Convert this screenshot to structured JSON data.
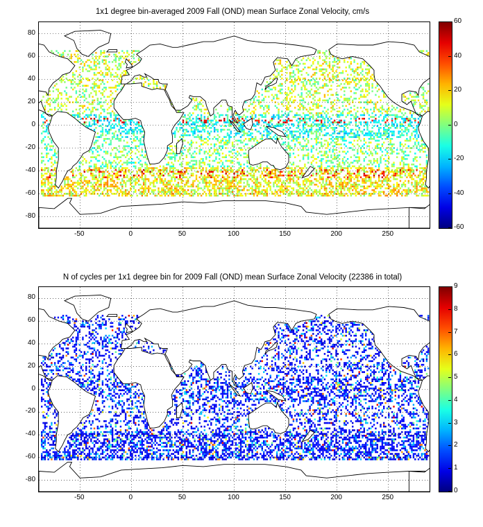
{
  "panels": [
    {
      "title": "1x1 degree bin-averaged 2009 Fall (OND) mean Surface Zonal Velocity, cm/s",
      "x_ticks": [
        "-50",
        "0",
        "50",
        "100",
        "150",
        "200",
        "250"
      ],
      "y_ticks": [
        "80",
        "60",
        "40",
        "20",
        "0",
        "-20",
        "-40",
        "-60",
        "-80"
      ],
      "colorbar_ticks": [
        "60",
        "40",
        "20",
        "0",
        "-20",
        "-40",
        "-60"
      ],
      "colormap": "jet",
      "clim": [
        -60,
        60
      ]
    },
    {
      "title": "N of cycles per 1x1 degree bin for 2009 Fall (OND) mean Surface Zonal Velocity (22386 in total)",
      "x_ticks": [
        "-50",
        "0",
        "50",
        "100",
        "150",
        "200",
        "250"
      ],
      "y_ticks": [
        "80",
        "60",
        "40",
        "20",
        "0",
        "-20",
        "-40",
        "-60",
        "-80"
      ],
      "colorbar_ticks": [
        "9",
        "8",
        "7",
        "6",
        "5",
        "4",
        "3",
        "2",
        "1",
        "0"
      ],
      "colormap": "jet",
      "clim": [
        0,
        9
      ]
    }
  ],
  "map": {
    "xlim": [
      -90,
      290
    ],
    "ylim": [
      -90,
      90
    ],
    "grid": "dotted",
    "land_color": "#ffffff",
    "coast_color": "#000000"
  }
}
